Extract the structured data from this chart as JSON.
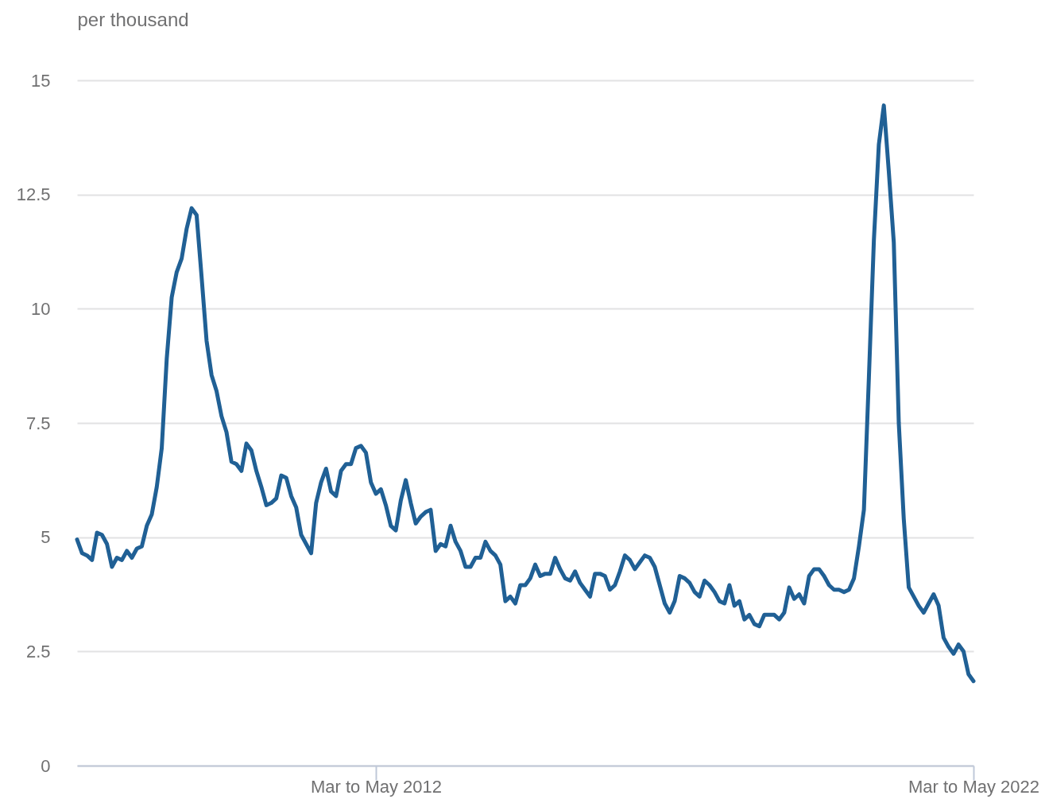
{
  "chart_data": {
    "type": "line",
    "ylabel": "per thousand",
    "categories": [
      null,
      null,
      null,
      null,
      null,
      null,
      null,
      null,
      null,
      null,
      null,
      null,
      null,
      null,
      null,
      null,
      null,
      null,
      null,
      null,
      null,
      null,
      null,
      null,
      null,
      null,
      null,
      null,
      null,
      null,
      null,
      null,
      null,
      null,
      null,
      null,
      null,
      null,
      null,
      null,
      null,
      null,
      null,
      null,
      null,
      null,
      null,
      null,
      null,
      null,
      null,
      null,
      null,
      null,
      null,
      null,
      null,
      null,
      null,
      null,
      "Mar to May 2012",
      null,
      null,
      null,
      null,
      null,
      null,
      null,
      null,
      null,
      null,
      null,
      null,
      null,
      null,
      null,
      null,
      null,
      null,
      null,
      null,
      null,
      null,
      null,
      null,
      null,
      null,
      null,
      null,
      null,
      null,
      null,
      null,
      null,
      null,
      null,
      null,
      null,
      null,
      null,
      null,
      null,
      null,
      null,
      null,
      null,
      null,
      null,
      null,
      null,
      null,
      null,
      null,
      null,
      null,
      null,
      null,
      null,
      null,
      null,
      null,
      null,
      null,
      null,
      null,
      null,
      null,
      null,
      null,
      null,
      null,
      null,
      null,
      null,
      null,
      null,
      null,
      null,
      null,
      null,
      null,
      null,
      null,
      null,
      null,
      null,
      null,
      null,
      null,
      null,
      null,
      null,
      null,
      null,
      null,
      null,
      null,
      null,
      null,
      null,
      null,
      null,
      null,
      null,
      null,
      null,
      null,
      null,
      null,
      null,
      null,
      null,
      null,
      null,
      null,
      null,
      null,
      null,
      null,
      null,
      "Mar to May 2022"
    ],
    "series": [
      {
        "color": "#206095",
        "values": [
          4.95,
          4.65,
          4.6,
          4.5,
          5.1,
          5.05,
          4.85,
          4.35,
          4.55,
          4.5,
          4.7,
          4.55,
          4.75,
          4.8,
          5.25,
          5.5,
          6.1,
          6.95,
          8.9,
          10.25,
          10.8,
          11.1,
          11.75,
          12.2,
          12.05,
          10.7,
          9.3,
          8.55,
          8.2,
          7.65,
          7.3,
          6.65,
          6.6,
          6.45,
          7.05,
          6.9,
          6.45,
          6.1,
          5.7,
          5.75,
          5.85,
          6.35,
          6.3,
          5.9,
          5.65,
          5.05,
          4.85,
          4.65,
          5.75,
          6.2,
          6.5,
          6.0,
          5.9,
          6.45,
          6.6,
          6.6,
          6.95,
          7.0,
          6.85,
          6.2,
          5.95,
          6.05,
          5.7,
          5.25,
          5.15,
          5.8,
          6.25,
          5.75,
          5.3,
          5.45,
          5.55,
          5.6,
          4.7,
          4.85,
          4.8,
          5.25,
          4.9,
          4.7,
          4.35,
          4.35,
          4.55,
          4.55,
          4.9,
          4.7,
          4.6,
          4.4,
          3.6,
          3.7,
          3.55,
          3.95,
          3.95,
          4.1,
          4.4,
          4.15,
          4.2,
          4.2,
          4.55,
          4.3,
          4.1,
          4.05,
          4.25,
          4.0,
          3.85,
          3.7,
          4.2,
          4.2,
          4.15,
          3.85,
          3.95,
          4.25,
          4.6,
          4.5,
          4.3,
          4.45,
          4.6,
          4.55,
          4.35,
          3.95,
          3.55,
          3.35,
          3.6,
          4.15,
          4.1,
          4.0,
          3.8,
          3.7,
          4.05,
          3.95,
          3.8,
          3.6,
          3.55,
          3.95,
          3.5,
          3.6,
          3.2,
          3.3,
          3.1,
          3.05,
          3.3,
          3.3,
          3.3,
          3.2,
          3.35,
          3.9,
          3.65,
          3.75,
          3.55,
          4.15,
          4.3,
          4.3,
          4.15,
          3.95,
          3.85,
          3.85,
          3.8,
          3.85,
          4.1,
          4.8,
          5.6,
          8.5,
          11.5,
          13.6,
          14.45,
          13.0,
          11.45,
          7.5,
          5.4,
          3.9,
          3.7,
          3.5,
          3.35,
          3.55,
          3.75,
          3.5,
          2.8,
          2.6,
          2.45,
          2.65,
          2.5,
          2.0,
          1.85
        ]
      }
    ],
    "ylim": [
      0,
      15
    ],
    "yticks": [
      0,
      2.5,
      5,
      7.5,
      10,
      12.5,
      15
    ],
    "grid": "y"
  }
}
